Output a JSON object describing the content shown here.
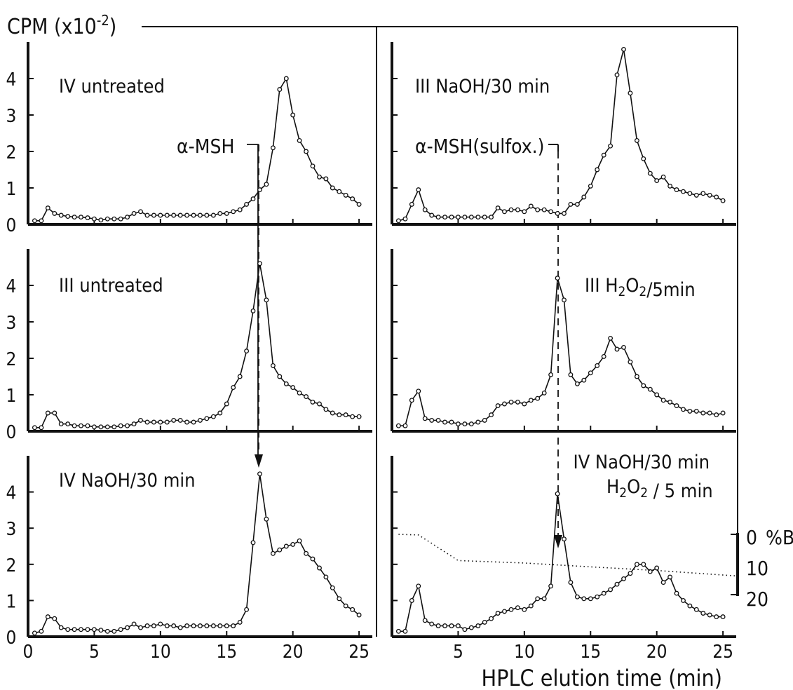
{
  "figure": {
    "y_axis_label": "CPM (x10",
    "y_axis_label_exp": "-2",
    "y_axis_label_close": ")",
    "x_axis_label": "HPLC elution time (min)",
    "secondary_axis_label": "%B",
    "secondary_ticks": [
      "0",
      "10",
      "20"
    ]
  },
  "annotations": {
    "left_marker": "α-MSH",
    "right_marker": "α-MSH(sulfox.)"
  },
  "chart_data": [
    {
      "type": "line",
      "panel": "top-left",
      "label": "IV untreated",
      "x": [
        0.5,
        1.0,
        1.5,
        2.0,
        2.5,
        3.0,
        3.5,
        4.0,
        4.5,
        5.0,
        5.5,
        6.0,
        6.5,
        7.0,
        7.5,
        8.0,
        8.5,
        9.0,
        9.5,
        10.0,
        10.5,
        11.0,
        11.5,
        12.0,
        12.5,
        13.0,
        13.5,
        14.0,
        14.5,
        15.0,
        15.5,
        16.0,
        16.5,
        17.0,
        17.5,
        18.0,
        18.5,
        19.0,
        19.5,
        20.0,
        20.5,
        21.0,
        21.5,
        22.0,
        22.5,
        23.0,
        23.5,
        24.0,
        24.5,
        25.0
      ],
      "y": [
        0.1,
        0.1,
        0.45,
        0.3,
        0.25,
        0.22,
        0.2,
        0.2,
        0.18,
        0.15,
        0.12,
        0.15,
        0.15,
        0.15,
        0.2,
        0.3,
        0.35,
        0.25,
        0.25,
        0.25,
        0.25,
        0.25,
        0.25,
        0.25,
        0.25,
        0.25,
        0.25,
        0.25,
        0.3,
        0.3,
        0.35,
        0.4,
        0.55,
        0.7,
        0.95,
        1.1,
        2.1,
        3.7,
        4.0,
        3.0,
        2.3,
        2.0,
        1.6,
        1.3,
        1.25,
        1.0,
        0.9,
        0.8,
        0.7,
        0.55
      ],
      "xlim": [
        0,
        26
      ],
      "ylim": [
        0,
        5
      ],
      "yticks": [
        "0",
        "1",
        "2",
        "3",
        "4"
      ],
      "xticks": []
    },
    {
      "type": "line",
      "panel": "top-right",
      "label": "III NaOH/30 min",
      "x": [
        0.5,
        1.0,
        1.5,
        2.0,
        2.5,
        3.0,
        3.5,
        4.0,
        4.5,
        5.0,
        5.5,
        6.0,
        6.5,
        7.0,
        7.5,
        8.0,
        8.5,
        9.0,
        9.5,
        10.0,
        10.5,
        11.0,
        11.5,
        12.0,
        12.5,
        13.0,
        13.5,
        14.0,
        14.5,
        15.0,
        15.5,
        16.0,
        16.5,
        17.0,
        17.5,
        18.0,
        18.5,
        19.0,
        19.5,
        20.0,
        20.5,
        21.0,
        21.5,
        22.0,
        22.5,
        23.0,
        23.5,
        24.0,
        24.5,
        25.0
      ],
      "y": [
        0.1,
        0.15,
        0.55,
        0.95,
        0.4,
        0.25,
        0.2,
        0.2,
        0.2,
        0.2,
        0.2,
        0.2,
        0.2,
        0.2,
        0.2,
        0.45,
        0.35,
        0.4,
        0.4,
        0.35,
        0.5,
        0.4,
        0.4,
        0.35,
        0.3,
        0.3,
        0.55,
        0.55,
        0.75,
        1.05,
        1.5,
        1.9,
        2.15,
        4.1,
        4.8,
        3.6,
        2.3,
        1.8,
        1.4,
        1.2,
        1.3,
        1.05,
        0.95,
        0.9,
        0.85,
        0.8,
        0.85,
        0.8,
        0.75,
        0.65
      ],
      "xlim": [
        0,
        26
      ],
      "ylim": [
        0,
        5
      ],
      "yticks": [],
      "xticks": []
    },
    {
      "type": "line",
      "panel": "middle-left",
      "label": "III untreated",
      "x": [
        0.5,
        1.0,
        1.5,
        2.0,
        2.5,
        3.0,
        3.5,
        4.0,
        4.5,
        5.0,
        5.5,
        6.0,
        6.5,
        7.0,
        7.5,
        8.0,
        8.5,
        9.0,
        9.5,
        10.0,
        10.5,
        11.0,
        11.5,
        12.0,
        12.5,
        13.0,
        13.5,
        14.0,
        14.5,
        15.0,
        15.5,
        16.0,
        16.5,
        17.0,
        17.5,
        18.0,
        18.5,
        19.0,
        19.5,
        20.0,
        20.5,
        21.0,
        21.5,
        22.0,
        22.5,
        23.0,
        23.5,
        24.0,
        24.5,
        25.0
      ],
      "y": [
        0.1,
        0.1,
        0.5,
        0.5,
        0.2,
        0.2,
        0.15,
        0.15,
        0.15,
        0.12,
        0.12,
        0.12,
        0.12,
        0.15,
        0.15,
        0.2,
        0.3,
        0.25,
        0.25,
        0.25,
        0.25,
        0.3,
        0.3,
        0.25,
        0.25,
        0.3,
        0.35,
        0.4,
        0.5,
        0.75,
        1.2,
        1.5,
        2.2,
        3.3,
        4.6,
        3.6,
        1.8,
        1.5,
        1.3,
        1.2,
        1.05,
        0.95,
        0.8,
        0.75,
        0.6,
        0.5,
        0.45,
        0.45,
        0.4,
        0.4
      ],
      "xlim": [
        0,
        26
      ],
      "ylim": [
        0,
        5
      ],
      "yticks": [
        "0",
        "1",
        "2",
        "3",
        "4"
      ],
      "xticks": []
    },
    {
      "type": "line",
      "panel": "middle-right",
      "label": "III H2O2/5min",
      "x": [
        0.5,
        1.0,
        1.5,
        2.0,
        2.5,
        3.0,
        3.5,
        4.0,
        4.5,
        5.0,
        5.5,
        6.0,
        6.5,
        7.0,
        7.5,
        8.0,
        8.5,
        9.0,
        9.5,
        10.0,
        10.5,
        11.0,
        11.5,
        12.0,
        12.5,
        13.0,
        13.5,
        14.0,
        14.5,
        15.0,
        15.5,
        16.0,
        16.5,
        17.0,
        17.5,
        18.0,
        18.5,
        19.0,
        19.5,
        20.0,
        20.5,
        21.0,
        21.5,
        22.0,
        22.5,
        23.0,
        23.5,
        24.0,
        24.5,
        25.0
      ],
      "y": [
        0.15,
        0.15,
        0.85,
        1.1,
        0.35,
        0.3,
        0.3,
        0.25,
        0.25,
        0.2,
        0.2,
        0.2,
        0.25,
        0.3,
        0.45,
        0.7,
        0.75,
        0.8,
        0.8,
        0.75,
        0.85,
        0.9,
        1.05,
        1.55,
        4.2,
        3.6,
        1.55,
        1.3,
        1.4,
        1.6,
        1.8,
        2.05,
        2.55,
        2.25,
        2.3,
        1.9,
        1.5,
        1.25,
        1.15,
        1.0,
        0.85,
        0.8,
        0.7,
        0.6,
        0.55,
        0.55,
        0.5,
        0.5,
        0.45,
        0.5
      ],
      "xlim": [
        0,
        26
      ],
      "ylim": [
        0,
        5
      ],
      "yticks": [],
      "xticks": []
    },
    {
      "type": "line",
      "panel": "bottom-left",
      "label": "IV NaOH/30 min",
      "x": [
        0.5,
        1.0,
        1.5,
        2.0,
        2.5,
        3.0,
        3.5,
        4.0,
        4.5,
        5.0,
        5.5,
        6.0,
        6.5,
        7.0,
        7.5,
        8.0,
        8.5,
        9.0,
        9.5,
        10.0,
        10.5,
        11.0,
        11.5,
        12.0,
        12.5,
        13.0,
        13.5,
        14.0,
        14.5,
        15.0,
        15.5,
        16.0,
        16.5,
        17.0,
        17.5,
        18.0,
        18.5,
        19.0,
        19.5,
        20.0,
        20.5,
        21.0,
        21.5,
        22.0,
        22.5,
        23.0,
        23.5,
        24.0,
        24.5,
        25.0
      ],
      "y": [
        0.1,
        0.15,
        0.55,
        0.5,
        0.25,
        0.2,
        0.2,
        0.2,
        0.2,
        0.2,
        0.18,
        0.15,
        0.15,
        0.2,
        0.25,
        0.35,
        0.25,
        0.3,
        0.3,
        0.35,
        0.3,
        0.3,
        0.25,
        0.3,
        0.3,
        0.3,
        0.3,
        0.3,
        0.3,
        0.3,
        0.3,
        0.4,
        0.75,
        2.6,
        4.5,
        3.25,
        2.3,
        2.4,
        2.5,
        2.55,
        2.65,
        2.3,
        2.15,
        1.9,
        1.65,
        1.35,
        1.05,
        0.85,
        0.75,
        0.6
      ],
      "xlim": [
        0,
        26
      ],
      "ylim": [
        0,
        5
      ],
      "yticks": [
        "0",
        "1",
        "2",
        "3",
        "4"
      ],
      "xticks": [
        "0",
        "5",
        "10",
        "15",
        "20",
        "25"
      ]
    },
    {
      "type": "line",
      "panel": "bottom-right",
      "label_line1": "IV NaOH/30 min",
      "label_line2": "H2O2 / 5 min",
      "x": [
        0.5,
        1.0,
        1.5,
        2.0,
        2.5,
        3.0,
        3.5,
        4.0,
        4.5,
        5.0,
        5.5,
        6.0,
        6.5,
        7.0,
        7.5,
        8.0,
        8.5,
        9.0,
        9.5,
        10.0,
        10.5,
        11.0,
        11.5,
        12.0,
        12.5,
        13.0,
        13.5,
        14.0,
        14.5,
        15.0,
        15.5,
        16.0,
        16.5,
        17.0,
        17.5,
        18.0,
        18.5,
        19.0,
        19.5,
        20.0,
        20.5,
        21.0,
        21.5,
        22.0,
        22.5,
        23.0,
        23.5,
        24.0,
        24.5,
        25.0
      ],
      "y": [
        0.15,
        0.15,
        1.0,
        1.4,
        0.45,
        0.35,
        0.3,
        0.3,
        0.3,
        0.3,
        0.2,
        0.25,
        0.3,
        0.4,
        0.5,
        0.65,
        0.7,
        0.75,
        0.8,
        0.75,
        0.85,
        1.05,
        1.05,
        1.4,
        3.95,
        2.7,
        1.5,
        1.1,
        1.05,
        1.05,
        1.1,
        1.2,
        1.3,
        1.45,
        1.6,
        1.75,
        2.0,
        2.0,
        1.8,
        1.9,
        1.5,
        1.65,
        1.2,
        1.0,
        0.85,
        0.75,
        0.65,
        0.6,
        0.55,
        0.55
      ],
      "gradient_percent_b": [
        [
          0.5,
          0
        ],
        [
          2.0,
          0.2
        ],
        [
          3.0,
          3.0
        ],
        [
          5.0,
          8.7
        ],
        [
          10.0,
          9.5
        ],
        [
          15.0,
          10.8
        ],
        [
          20.0,
          12.0
        ],
        [
          25.0,
          13.5
        ],
        [
          26.0,
          13.8
        ]
      ],
      "xlim": [
        0,
        26
      ],
      "ylim": [
        0,
        5
      ],
      "yticks": [],
      "xticks": [
        "5",
        "10",
        "15",
        "20",
        "25"
      ]
    }
  ]
}
